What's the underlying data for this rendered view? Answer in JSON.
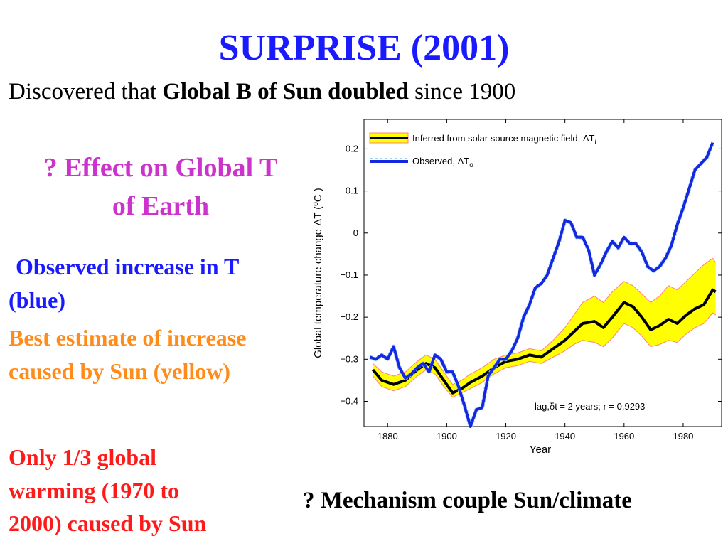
{
  "slide": {
    "title": "SURPRISE (2001)",
    "subtitle_prefix": "Discovered that ",
    "subtitle_bold": "Global B of Sun doubled",
    "subtitle_suffix": " since 1900",
    "question_effect_line1": "? Effect on Global T",
    "question_effect_line2": "of Earth",
    "observed_line1": "Observed increase in T",
    "observed_line2": "(blue)",
    "best_line1": "Best estimate of increase",
    "best_line2": "caused by Sun (yellow)",
    "third_line1": "Only 1/3 global",
    "third_line2": "warming (1970 to",
    "third_line3": "2000) caused by Sun",
    "mechanism": "? Mechanism couple Sun/climate",
    "colors": {
      "title": "#1a1aff",
      "effect": "#cc33cc",
      "observed": "#1a1aff",
      "best": "#ff8c1a",
      "third": "#ff1a1a"
    }
  },
  "chart_data": {
    "type": "line",
    "xlabel": "Year",
    "ylabel": "Global temperature change ΔT  (ºC )",
    "xlim": [
      1872,
      1993
    ],
    "ylim": [
      -0.46,
      0.27
    ],
    "xticks": [
      1880,
      1900,
      1920,
      1940,
      1960,
      1980
    ],
    "yticks": [
      -0.4,
      -0.3,
      -0.2,
      -0.1,
      0,
      0.1,
      0.2
    ],
    "grid": false,
    "legend_position": "top-left",
    "annotation": "lag,δt = 2 years; r = 0.9293",
    "series": [
      {
        "name": "Inferred from solar source magnetic field, ΔT",
        "name_sub": "i",
        "color": "#000000",
        "band_color": "#ffff00",
        "band_edge_color": "#ff8080",
        "x": [
          1875,
          1878,
          1882,
          1886,
          1890,
          1893,
          1896,
          1899,
          1902,
          1905,
          1908,
          1912,
          1916,
          1920,
          1924,
          1928,
          1932,
          1936,
          1940,
          1943,
          1946,
          1950,
          1953,
          1956,
          1960,
          1963,
          1966,
          1969,
          1972,
          1975,
          1978,
          1981,
          1984,
          1987,
          1990,
          1991
        ],
        "values": [
          -0.325,
          -0.35,
          -0.36,
          -0.35,
          -0.325,
          -0.31,
          -0.32,
          -0.35,
          -0.38,
          -0.37,
          -0.355,
          -0.34,
          -0.32,
          -0.305,
          -0.3,
          -0.29,
          -0.295,
          -0.275,
          -0.255,
          -0.235,
          -0.215,
          -0.21,
          -0.225,
          -0.2,
          -0.165,
          -0.175,
          -0.2,
          -0.23,
          -0.22,
          -0.205,
          -0.215,
          -0.195,
          -0.18,
          -0.17,
          -0.135,
          -0.14
        ],
        "band_upper": [
          -0.31,
          -0.33,
          -0.34,
          -0.33,
          -0.305,
          -0.29,
          -0.3,
          -0.33,
          -0.36,
          -0.35,
          -0.335,
          -0.32,
          -0.3,
          -0.29,
          -0.285,
          -0.275,
          -0.28,
          -0.255,
          -0.225,
          -0.195,
          -0.165,
          -0.15,
          -0.165,
          -0.14,
          -0.115,
          -0.125,
          -0.145,
          -0.165,
          -0.15,
          -0.125,
          -0.135,
          -0.115,
          -0.095,
          -0.075,
          -0.06,
          -0.07
        ],
        "band_lower": [
          -0.34,
          -0.365,
          -0.375,
          -0.365,
          -0.34,
          -0.325,
          -0.335,
          -0.365,
          -0.39,
          -0.38,
          -0.37,
          -0.355,
          -0.335,
          -0.32,
          -0.315,
          -0.305,
          -0.31,
          -0.295,
          -0.28,
          -0.265,
          -0.255,
          -0.26,
          -0.27,
          -0.25,
          -0.215,
          -0.225,
          -0.245,
          -0.27,
          -0.265,
          -0.255,
          -0.26,
          -0.24,
          -0.225,
          -0.215,
          -0.19,
          -0.195
        ]
      },
      {
        "name": "Observed, ΔT",
        "name_sub": "o",
        "color": "#1428e0",
        "x": [
          1874,
          1876,
          1878,
          1880,
          1882,
          1884,
          1886,
          1888,
          1890,
          1892,
          1894,
          1896,
          1898,
          1900,
          1902,
          1904,
          1906,
          1908,
          1910,
          1912,
          1914,
          1916,
          1918,
          1920,
          1922,
          1924,
          1926,
          1928,
          1930,
          1932,
          1934,
          1936,
          1938,
          1940,
          1942,
          1944,
          1946,
          1948,
          1950,
          1952,
          1954,
          1956,
          1958,
          1960,
          1962,
          1964,
          1966,
          1968,
          1970,
          1972,
          1974,
          1976,
          1978,
          1980,
          1982,
          1984,
          1986,
          1988,
          1990
        ],
        "values": [
          -0.295,
          -0.3,
          -0.29,
          -0.3,
          -0.27,
          -0.32,
          -0.345,
          -0.335,
          -0.32,
          -0.31,
          -0.33,
          -0.29,
          -0.3,
          -0.33,
          -0.33,
          -0.365,
          -0.41,
          -0.46,
          -0.42,
          -0.415,
          -0.34,
          -0.32,
          -0.3,
          -0.3,
          -0.28,
          -0.25,
          -0.2,
          -0.17,
          -0.13,
          -0.12,
          -0.1,
          -0.06,
          -0.02,
          0.03,
          0.025,
          -0.01,
          -0.01,
          -0.04,
          -0.1,
          -0.075,
          -0.045,
          -0.02,
          -0.035,
          -0.01,
          -0.025,
          -0.025,
          -0.045,
          -0.08,
          -0.09,
          -0.08,
          -0.06,
          -0.03,
          0.02,
          0.06,
          0.105,
          0.15,
          0.165,
          0.18,
          0.215
        ]
      }
    ]
  }
}
